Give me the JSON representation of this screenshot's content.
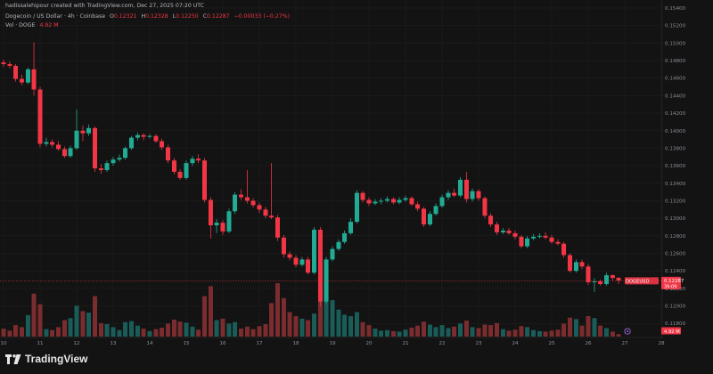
{
  "header": {
    "attribution": "hadissalehipour created with TradingView.com, Dec 27, 2025 07:20 UTC",
    "symbol_line": "Dogecoin / US Dollar · 4h · Coinbase",
    "ohlc": {
      "o_label": "O",
      "o_value": "0.12321",
      "h_label": "H",
      "h_value": "0.12328",
      "l_label": "L",
      "l_value": "0.12250",
      "c_label": "C",
      "c_value": "0.12287",
      "change": "−0.00033 (−0.27%)"
    },
    "volume_label": "Vol · DOGE",
    "volume_value": "4.92 M"
  },
  "brand": {
    "name": "TradingView",
    "icon": "tradingview-logo-icon"
  },
  "colors": {
    "background": "#131313",
    "up": "#22ab94",
    "down": "#f23645",
    "up_volume": "#1a5c58",
    "down_volume": "#7a2c2e",
    "grid": "#1f1f1f",
    "price_line": "#f23645"
  },
  "chart_data": {
    "type": "candlestick",
    "timeframe": "4h",
    "y_axis": {
      "ticks": [
        "0.15400",
        "0.15200",
        "0.15000",
        "0.14800",
        "0.14600",
        "0.14400",
        "0.14200",
        "0.14000",
        "0.13800",
        "0.13600",
        "0.13400",
        "0.13200",
        "0.13000",
        "0.12800",
        "0.12600",
        "0.12400",
        "0.12200",
        "0.12000",
        "0.11800"
      ],
      "range": [
        0.1165,
        0.1541
      ]
    },
    "x_axis": {
      "ticks": [
        "10",
        "11",
        "12",
        "13",
        "14",
        "15",
        "16",
        "17",
        "18",
        "19",
        "20",
        "21",
        "22",
        "23",
        "24",
        "25",
        "26",
        "27",
        "28"
      ],
      "range": [
        10,
        28
      ]
    },
    "last_price": {
      "symbol": "DOGEUSD",
      "value": "0.12287",
      "countdown": "39:09"
    },
    "volume_badge": "4.92 M",
    "series": [
      {
        "t": 10.0,
        "o": 0.1478,
        "h": 0.1481,
        "l": 0.1473,
        "c": 0.1476,
        "v": 1.6
      },
      {
        "t": 10.17,
        "o": 0.1476,
        "h": 0.1479,
        "l": 0.1471,
        "c": 0.1474,
        "v": 1.2
      },
      {
        "t": 10.33,
        "o": 0.1474,
        "h": 0.1476,
        "l": 0.1456,
        "c": 0.1459,
        "v": 2.3
      },
      {
        "t": 10.5,
        "o": 0.1459,
        "h": 0.1464,
        "l": 0.1452,
        "c": 0.1455,
        "v": 1.9
      },
      {
        "t": 10.67,
        "o": 0.1455,
        "h": 0.1472,
        "l": 0.1453,
        "c": 0.147,
        "v": 4.3
      },
      {
        "t": 10.83,
        "o": 0.147,
        "h": 0.1501,
        "l": 0.144,
        "c": 0.1447,
        "v": 8.6
      },
      {
        "t": 11.0,
        "o": 0.1447,
        "h": 0.145,
        "l": 0.1381,
        "c": 0.1385,
        "v": 6.5
      },
      {
        "t": 11.17,
        "o": 0.1385,
        "h": 0.1392,
        "l": 0.1382,
        "c": 0.1387,
        "v": 1.5
      },
      {
        "t": 11.33,
        "o": 0.1387,
        "h": 0.139,
        "l": 0.1381,
        "c": 0.1384,
        "v": 1.3
      },
      {
        "t": 11.5,
        "o": 0.1384,
        "h": 0.1388,
        "l": 0.1377,
        "c": 0.1379,
        "v": 1.9
      },
      {
        "t": 11.67,
        "o": 0.1379,
        "h": 0.1382,
        "l": 0.1369,
        "c": 0.1371,
        "v": 3.3
      },
      {
        "t": 11.83,
        "o": 0.1371,
        "h": 0.1383,
        "l": 0.1369,
        "c": 0.138,
        "v": 3.7
      },
      {
        "t": 12.0,
        "o": 0.138,
        "h": 0.1424,
        "l": 0.1378,
        "c": 0.14,
        "v": 6.2
      },
      {
        "t": 12.17,
        "o": 0.14,
        "h": 0.1406,
        "l": 0.1388,
        "c": 0.1397,
        "v": 5.1
      },
      {
        "t": 12.33,
        "o": 0.1397,
        "h": 0.1407,
        "l": 0.1394,
        "c": 0.1403,
        "v": 4.8
      },
      {
        "t": 12.5,
        "o": 0.1403,
        "h": 0.1405,
        "l": 0.1353,
        "c": 0.1357,
        "v": 8.1
      },
      {
        "t": 12.67,
        "o": 0.1357,
        "h": 0.1362,
        "l": 0.1351,
        "c": 0.1355,
        "v": 2.7
      },
      {
        "t": 12.83,
        "o": 0.1355,
        "h": 0.1366,
        "l": 0.1353,
        "c": 0.1363,
        "v": 2.5
      },
      {
        "t": 13.0,
        "o": 0.1363,
        "h": 0.137,
        "l": 0.136,
        "c": 0.1367,
        "v": 1.9
      },
      {
        "t": 13.17,
        "o": 0.1367,
        "h": 0.1373,
        "l": 0.1365,
        "c": 0.1369,
        "v": 1.3
      },
      {
        "t": 13.33,
        "o": 0.1369,
        "h": 0.1382,
        "l": 0.1367,
        "c": 0.138,
        "v": 2.9
      },
      {
        "t": 13.5,
        "o": 0.138,
        "h": 0.1394,
        "l": 0.1378,
        "c": 0.1392,
        "v": 3.1
      },
      {
        "t": 13.67,
        "o": 0.1392,
        "h": 0.1398,
        "l": 0.1389,
        "c": 0.1395,
        "v": 2.2
      },
      {
        "t": 13.83,
        "o": 0.1395,
        "h": 0.1397,
        "l": 0.1389,
        "c": 0.1393,
        "v": 1.6
      },
      {
        "t": 14.0,
        "o": 0.1393,
        "h": 0.1396,
        "l": 0.1391,
        "c": 0.1394,
        "v": 1.1
      },
      {
        "t": 14.17,
        "o": 0.1394,
        "h": 0.1396,
        "l": 0.1386,
        "c": 0.1388,
        "v": 1.5
      },
      {
        "t": 14.33,
        "o": 0.1388,
        "h": 0.1391,
        "l": 0.1378,
        "c": 0.1381,
        "v": 1.8
      },
      {
        "t": 14.5,
        "o": 0.1381,
        "h": 0.1384,
        "l": 0.1363,
        "c": 0.1366,
        "v": 2.6
      },
      {
        "t": 14.67,
        "o": 0.1366,
        "h": 0.1369,
        "l": 0.135,
        "c": 0.1353,
        "v": 3.4
      },
      {
        "t": 14.83,
        "o": 0.1353,
        "h": 0.1356,
        "l": 0.1344,
        "c": 0.1346,
        "v": 3.0
      },
      {
        "t": 15.0,
        "o": 0.1346,
        "h": 0.1366,
        "l": 0.1344,
        "c": 0.1363,
        "v": 2.8
      },
      {
        "t": 15.17,
        "o": 0.1363,
        "h": 0.1371,
        "l": 0.136,
        "c": 0.1368,
        "v": 2.0
      },
      {
        "t": 15.33,
        "o": 0.1368,
        "h": 0.1373,
        "l": 0.1363,
        "c": 0.1366,
        "v": 1.4
      },
      {
        "t": 15.5,
        "o": 0.1366,
        "h": 0.1369,
        "l": 0.1318,
        "c": 0.1321,
        "v": 8.1
      },
      {
        "t": 15.67,
        "o": 0.1321,
        "h": 0.1324,
        "l": 0.1277,
        "c": 0.1292,
        "v": 10.1
      },
      {
        "t": 15.83,
        "o": 0.1292,
        "h": 0.1299,
        "l": 0.1283,
        "c": 0.1295,
        "v": 3.3
      },
      {
        "t": 16.0,
        "o": 0.1295,
        "h": 0.1298,
        "l": 0.1281,
        "c": 0.1285,
        "v": 3.6
      },
      {
        "t": 16.17,
        "o": 0.1285,
        "h": 0.1311,
        "l": 0.1283,
        "c": 0.1308,
        "v": 2.6
      },
      {
        "t": 16.33,
        "o": 0.1308,
        "h": 0.133,
        "l": 0.1305,
        "c": 0.1327,
        "v": 2.9
      },
      {
        "t": 16.5,
        "o": 0.1327,
        "h": 0.1333,
        "l": 0.1321,
        "c": 0.1324,
        "v": 1.6
      },
      {
        "t": 16.67,
        "o": 0.1324,
        "h": 0.1355,
        "l": 0.1317,
        "c": 0.132,
        "v": 2.0
      },
      {
        "t": 16.83,
        "o": 0.132,
        "h": 0.1323,
        "l": 0.1312,
        "c": 0.1315,
        "v": 1.5
      },
      {
        "t": 17.0,
        "o": 0.1315,
        "h": 0.1318,
        "l": 0.1306,
        "c": 0.131,
        "v": 2.1
      },
      {
        "t": 17.17,
        "o": 0.131,
        "h": 0.1313,
        "l": 0.13,
        "c": 0.1303,
        "v": 2.5
      },
      {
        "t": 17.33,
        "o": 0.1303,
        "h": 0.1363,
        "l": 0.1299,
        "c": 0.1301,
        "v": 6.7
      },
      {
        "t": 17.5,
        "o": 0.1301,
        "h": 0.1304,
        "l": 0.1274,
        "c": 0.1278,
        "v": 10.7
      },
      {
        "t": 17.67,
        "o": 0.1278,
        "h": 0.1281,
        "l": 0.1255,
        "c": 0.1259,
        "v": 7.7
      },
      {
        "t": 17.83,
        "o": 0.1259,
        "h": 0.1262,
        "l": 0.1252,
        "c": 0.1255,
        "v": 4.9
      },
      {
        "t": 18.0,
        "o": 0.1255,
        "h": 0.1258,
        "l": 0.1244,
        "c": 0.1247,
        "v": 4.1
      },
      {
        "t": 18.17,
        "o": 0.1247,
        "h": 0.1256,
        "l": 0.1245,
        "c": 0.1253,
        "v": 3.6
      },
      {
        "t": 18.33,
        "o": 0.1253,
        "h": 0.1256,
        "l": 0.1236,
        "c": 0.1238,
        "v": 3.3
      },
      {
        "t": 18.5,
        "o": 0.1238,
        "h": 0.129,
        "l": 0.1236,
        "c": 0.1287,
        "v": 4.6
      },
      {
        "t": 18.67,
        "o": 0.1287,
        "h": 0.129,
        "l": 0.12,
        "c": 0.1205,
        "v": 7.6
      },
      {
        "t": 18.83,
        "o": 0.1205,
        "h": 0.1256,
        "l": 0.1203,
        "c": 0.1253,
        "v": 9.9
      },
      {
        "t": 19.0,
        "o": 0.1253,
        "h": 0.1268,
        "l": 0.1251,
        "c": 0.1265,
        "v": 7.3
      },
      {
        "t": 19.17,
        "o": 0.1265,
        "h": 0.1276,
        "l": 0.1263,
        "c": 0.1273,
        "v": 5.4
      },
      {
        "t": 19.33,
        "o": 0.1273,
        "h": 0.1286,
        "l": 0.1271,
        "c": 0.1283,
        "v": 4.4
      },
      {
        "t": 19.5,
        "o": 0.1283,
        "h": 0.13,
        "l": 0.1281,
        "c": 0.1296,
        "v": 4.1
      },
      {
        "t": 19.67,
        "o": 0.1296,
        "h": 0.1332,
        "l": 0.1294,
        "c": 0.1329,
        "v": 4.9
      },
      {
        "t": 19.83,
        "o": 0.1329,
        "h": 0.1331,
        "l": 0.1318,
        "c": 0.1321,
        "v": 2.9
      },
      {
        "t": 20.0,
        "o": 0.1321,
        "h": 0.1324,
        "l": 0.1314,
        "c": 0.1317,
        "v": 2.3
      },
      {
        "t": 20.17,
        "o": 0.1317,
        "h": 0.1322,
        "l": 0.1315,
        "c": 0.1319,
        "v": 1.6
      },
      {
        "t": 20.33,
        "o": 0.1319,
        "h": 0.1323,
        "l": 0.1316,
        "c": 0.132,
        "v": 1.2
      },
      {
        "t": 20.5,
        "o": 0.132,
        "h": 0.1325,
        "l": 0.1318,
        "c": 0.1322,
        "v": 1.3
      },
      {
        "t": 20.67,
        "o": 0.1322,
        "h": 0.1324,
        "l": 0.1316,
        "c": 0.1318,
        "v": 1.1
      },
      {
        "t": 20.83,
        "o": 0.1318,
        "h": 0.1324,
        "l": 0.1316,
        "c": 0.1321,
        "v": 1.0
      },
      {
        "t": 21.0,
        "o": 0.1321,
        "h": 0.1326,
        "l": 0.1319,
        "c": 0.1323,
        "v": 1.4
      },
      {
        "t": 21.17,
        "o": 0.1323,
        "h": 0.1325,
        "l": 0.1314,
        "c": 0.1316,
        "v": 1.8
      },
      {
        "t": 21.33,
        "o": 0.1316,
        "h": 0.1319,
        "l": 0.1308,
        "c": 0.1311,
        "v": 2.2
      },
      {
        "t": 21.5,
        "o": 0.1311,
        "h": 0.1313,
        "l": 0.129,
        "c": 0.1293,
        "v": 3.0
      },
      {
        "t": 21.67,
        "o": 0.1293,
        "h": 0.1308,
        "l": 0.1291,
        "c": 0.1305,
        "v": 2.4
      },
      {
        "t": 21.83,
        "o": 0.1305,
        "h": 0.1317,
        "l": 0.1303,
        "c": 0.1314,
        "v": 1.9
      },
      {
        "t": 22.0,
        "o": 0.1314,
        "h": 0.1327,
        "l": 0.1312,
        "c": 0.1324,
        "v": 2.3
      },
      {
        "t": 22.17,
        "o": 0.1324,
        "h": 0.1332,
        "l": 0.1321,
        "c": 0.1329,
        "v": 1.7
      },
      {
        "t": 22.33,
        "o": 0.1329,
        "h": 0.1334,
        "l": 0.1324,
        "c": 0.1326,
        "v": 2.0
      },
      {
        "t": 22.5,
        "o": 0.1326,
        "h": 0.1347,
        "l": 0.1324,
        "c": 0.1344,
        "v": 2.6
      },
      {
        "t": 22.67,
        "o": 0.1344,
        "h": 0.1353,
        "l": 0.1318,
        "c": 0.1322,
        "v": 3.2
      },
      {
        "t": 22.83,
        "o": 0.1322,
        "h": 0.1334,
        "l": 0.1319,
        "c": 0.1331,
        "v": 1.9
      },
      {
        "t": 23.0,
        "o": 0.1331,
        "h": 0.1333,
        "l": 0.132,
        "c": 0.1323,
        "v": 1.7
      },
      {
        "t": 23.17,
        "o": 0.1323,
        "h": 0.1325,
        "l": 0.13,
        "c": 0.1303,
        "v": 2.4
      },
      {
        "t": 23.33,
        "o": 0.1303,
        "h": 0.1306,
        "l": 0.129,
        "c": 0.1293,
        "v": 2.3
      },
      {
        "t": 23.5,
        "o": 0.1293,
        "h": 0.1296,
        "l": 0.1281,
        "c": 0.1284,
        "v": 2.7
      },
      {
        "t": 23.67,
        "o": 0.1284,
        "h": 0.1289,
        "l": 0.1282,
        "c": 0.1286,
        "v": 1.5
      },
      {
        "t": 23.83,
        "o": 0.1286,
        "h": 0.1289,
        "l": 0.1281,
        "c": 0.1283,
        "v": 1.2
      },
      {
        "t": 24.0,
        "o": 0.1283,
        "h": 0.1286,
        "l": 0.1276,
        "c": 0.1279,
        "v": 1.4
      },
      {
        "t": 24.17,
        "o": 0.1279,
        "h": 0.1281,
        "l": 0.1266,
        "c": 0.1268,
        "v": 2.1
      },
      {
        "t": 24.33,
        "o": 0.1268,
        "h": 0.128,
        "l": 0.1266,
        "c": 0.1277,
        "v": 1.9
      },
      {
        "t": 24.5,
        "o": 0.1277,
        "h": 0.1282,
        "l": 0.1275,
        "c": 0.1279,
        "v": 1.3
      },
      {
        "t": 24.67,
        "o": 0.1279,
        "h": 0.1283,
        "l": 0.1277,
        "c": 0.128,
        "v": 1.1
      },
      {
        "t": 24.83,
        "o": 0.128,
        "h": 0.1284,
        "l": 0.1276,
        "c": 0.1278,
        "v": 1.0
      },
      {
        "t": 25.0,
        "o": 0.1278,
        "h": 0.1281,
        "l": 0.1271,
        "c": 0.1273,
        "v": 1.2
      },
      {
        "t": 25.17,
        "o": 0.1273,
        "h": 0.1276,
        "l": 0.1269,
        "c": 0.1271,
        "v": 1.4
      },
      {
        "t": 25.33,
        "o": 0.1271,
        "h": 0.1273,
        "l": 0.1255,
        "c": 0.1258,
        "v": 2.6
      },
      {
        "t": 25.5,
        "o": 0.1258,
        "h": 0.126,
        "l": 0.1238,
        "c": 0.124,
        "v": 3.8
      },
      {
        "t": 25.67,
        "o": 0.124,
        "h": 0.1253,
        "l": 0.1238,
        "c": 0.125,
        "v": 3.5
      },
      {
        "t": 25.83,
        "o": 0.125,
        "h": 0.1253,
        "l": 0.1242,
        "c": 0.1245,
        "v": 2.2
      },
      {
        "t": 26.0,
        "o": 0.1245,
        "h": 0.1248,
        "l": 0.1224,
        "c": 0.1227,
        "v": 4.1
      },
      {
        "t": 26.17,
        "o": 0.1227,
        "h": 0.1232,
        "l": 0.1216,
        "c": 0.1228,
        "v": 3.7
      },
      {
        "t": 26.33,
        "o": 0.1228,
        "h": 0.123,
        "l": 0.1223,
        "c": 0.1225,
        "v": 2.2
      },
      {
        "t": 26.5,
        "o": 0.1225,
        "h": 0.1238,
        "l": 0.1223,
        "c": 0.1235,
        "v": 1.7
      },
      {
        "t": 26.67,
        "o": 0.1235,
        "h": 0.1236,
        "l": 0.1229,
        "c": 0.1232,
        "v": 1.0
      },
      {
        "t": 26.83,
        "o": 0.1232,
        "h": 0.1233,
        "l": 0.1225,
        "c": 0.1229,
        "v": 0.5
      }
    ]
  }
}
